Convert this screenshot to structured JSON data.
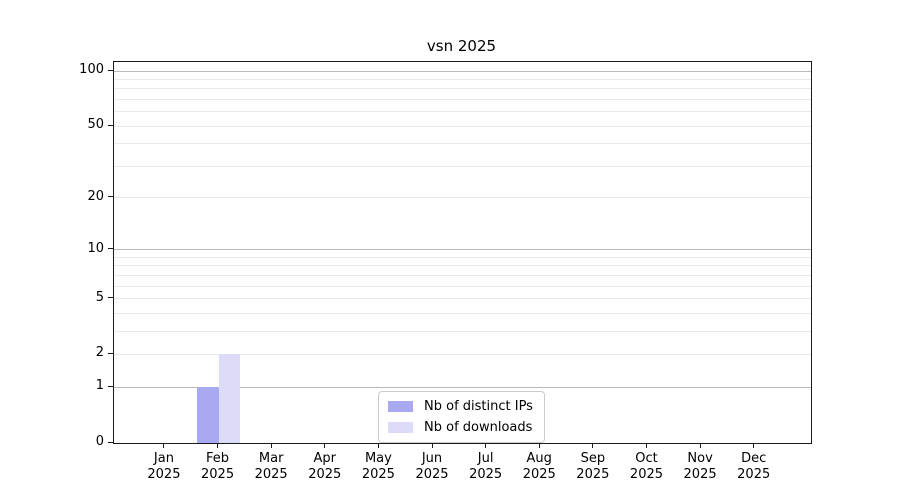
{
  "chart_data": {
    "type": "bar",
    "title": "vsn 2025",
    "x": [
      "Jan",
      "Feb",
      "Mar",
      "Apr",
      "May",
      "Jun",
      "Jul",
      "Aug",
      "Sep",
      "Oct",
      "Nov",
      "Dec"
    ],
    "x_year": "2025",
    "categories": [
      "Jan 2025",
      "Feb 2025",
      "Mar 2025",
      "Apr 2025",
      "May 2025",
      "Jun 2025",
      "Jul 2025",
      "Aug 2025",
      "Sep 2025",
      "Oct 2025",
      "Nov 2025",
      "Dec 2025"
    ],
    "series": [
      {
        "name": "Nb of distinct IPs",
        "color": "#a9a9f2",
        "values": [
          0,
          1,
          0,
          0,
          0,
          0,
          0,
          0,
          0,
          0,
          0,
          0
        ]
      },
      {
        "name": "Nb of downloads",
        "color": "#dcdcf8",
        "values": [
          0,
          2,
          0,
          0,
          0,
          0,
          0,
          0,
          0,
          0,
          0,
          0
        ]
      }
    ],
    "yscale": "log1p",
    "ylabel": "",
    "xlabel": "",
    "ylim": [
      0,
      112
    ],
    "ytick_values": [
      0,
      1,
      2,
      5,
      10,
      20,
      50,
      100
    ],
    "ytick_labels": [
      "0",
      "1",
      "2",
      "5",
      "10",
      "20",
      "50",
      "100"
    ],
    "major_grid_values": [
      1,
      10,
      100
    ],
    "minor_grid_values": [
      2,
      3,
      4,
      5,
      6,
      7,
      8,
      9,
      20,
      30,
      40,
      50,
      60,
      70,
      80,
      90
    ],
    "grid": "horizontal",
    "legend_position": "lower-center-inside",
    "colors": {
      "grid_minor": "#e9e9e9",
      "grid_major": "#b8b8b8",
      "axis": "#1a1a1a",
      "background": "#ffffff"
    }
  }
}
